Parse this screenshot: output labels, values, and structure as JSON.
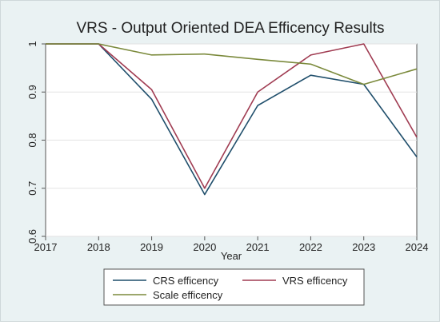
{
  "chart_data": {
    "type": "line",
    "title": "VRS - Output Oriented DEA Efficency Results",
    "xlabel": "Year",
    "ylabel": "",
    "x": [
      2017,
      2018,
      2019,
      2020,
      2021,
      2022,
      2023,
      2024
    ],
    "xlim": [
      2017,
      2024
    ],
    "ylim": [
      0.6,
      1.0
    ],
    "yticks": [
      "0.6",
      "0.7",
      "0.8",
      "0.9",
      "1"
    ],
    "grid": true,
    "legend_position": "bottom",
    "series": [
      {
        "name": "CRS efficency",
        "color": "#1f4e6b",
        "values": [
          1.0,
          1.0,
          0.885,
          0.687,
          0.872,
          0.935,
          0.916,
          0.765
        ]
      },
      {
        "name": "VRS efficency",
        "color": "#a03c52",
        "values": [
          1.0,
          1.0,
          0.905,
          0.7,
          0.9,
          0.977,
          1.0,
          0.806
        ]
      },
      {
        "name": "Scale efficency",
        "color": "#7b8a3c",
        "values": [
          1.0,
          1.0,
          0.977,
          0.979,
          0.968,
          0.958,
          0.916,
          0.948
        ]
      }
    ]
  }
}
